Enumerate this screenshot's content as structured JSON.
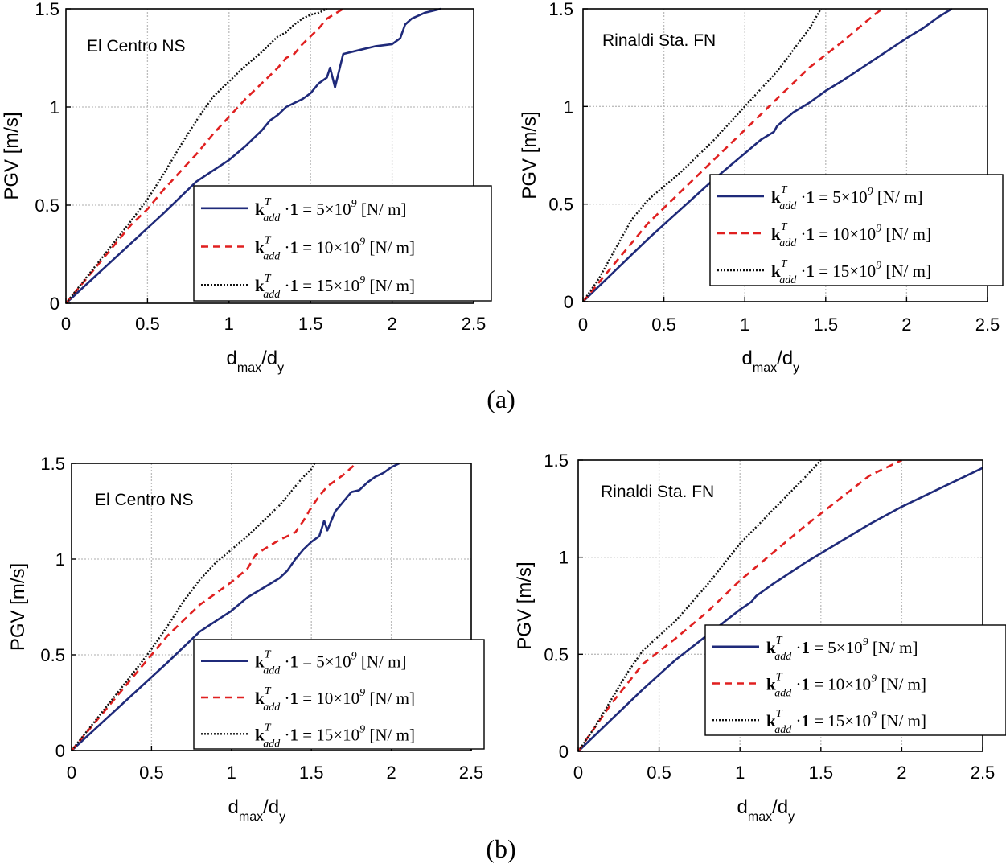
{
  "figure": {
    "captions": [
      "(a)",
      "(b)"
    ]
  },
  "legend_labels": [
    "= 5×10",
    "= 10×10",
    "= 15×10"
  ],
  "legend_common": {
    "k": "k",
    "sup": "T",
    "sub": "add",
    "dot": "·",
    "one": "1",
    "exp": "9",
    "unit": "[N/ m]"
  },
  "colors": {
    "series1": "#1f2a7a",
    "series2": "#e02020",
    "series3": "#111111",
    "grid": "#bdbdbd"
  },
  "chart_data": [
    {
      "id": "a-left",
      "type": "line",
      "title": "El Centro NS",
      "xlabel": "d_max/d_y",
      "xlabel_main": "d",
      "xlabel_sub1": "max",
      "xlabel_mid": "/d",
      "xlabel_sub2": "y",
      "ylabel": "PGV [m/s]",
      "xlim": [
        0,
        2.5
      ],
      "ylim": [
        0,
        1.5
      ],
      "xticks": [
        "0",
        "0.5",
        "1",
        "1.5",
        "2",
        "2.5"
      ],
      "yticks": [
        "0",
        "0.5",
        "1",
        "1.5"
      ],
      "legend": "bottom-right",
      "series": [
        {
          "name": "kTadd·1 = 5×10^9 [N/m]",
          "style": "solid",
          "x": [
            0,
            0.3,
            0.6,
            0.8,
            1.0,
            1.1,
            1.15,
            1.2,
            1.25,
            1.3,
            1.35,
            1.4,
            1.45,
            1.5,
            1.55,
            1.6,
            1.62,
            1.65,
            1.7,
            1.8,
            1.9,
            2.0,
            2.05,
            2.08,
            2.12,
            2.2,
            2.3
          ],
          "y": [
            0,
            0.23,
            0.46,
            0.62,
            0.73,
            0.8,
            0.84,
            0.88,
            0.93,
            0.96,
            1.0,
            1.02,
            1.04,
            1.07,
            1.12,
            1.15,
            1.2,
            1.1,
            1.27,
            1.29,
            1.31,
            1.32,
            1.35,
            1.42,
            1.45,
            1.48,
            1.5
          ]
        },
        {
          "name": "kTadd·1 = 10×10^9 [N/m]",
          "style": "dashed",
          "x": [
            0,
            0.2,
            0.4,
            0.5,
            0.6,
            0.8,
            0.9,
            1.0,
            1.1,
            1.2,
            1.3,
            1.35,
            1.4,
            1.45,
            1.5,
            1.55,
            1.6,
            1.7
          ],
          "y": [
            0,
            0.2,
            0.4,
            0.48,
            0.58,
            0.76,
            0.86,
            0.95,
            1.04,
            1.12,
            1.2,
            1.25,
            1.27,
            1.32,
            1.36,
            1.4,
            1.45,
            1.5
          ]
        },
        {
          "name": "kTadd·1 = 15×10^9 [N/m]",
          "style": "dotted",
          "x": [
            0,
            0.2,
            0.4,
            0.5,
            0.6,
            0.7,
            0.8,
            0.9,
            1.0,
            1.1,
            1.2,
            1.25,
            1.3,
            1.35,
            1.4,
            1.45,
            1.5,
            1.55,
            1.6
          ],
          "y": [
            0,
            0.21,
            0.42,
            0.53,
            0.66,
            0.8,
            0.93,
            1.05,
            1.13,
            1.21,
            1.28,
            1.32,
            1.36,
            1.38,
            1.42,
            1.45,
            1.47,
            1.48,
            1.5
          ]
        }
      ]
    },
    {
      "id": "a-right",
      "type": "line",
      "title": "Rinaldi Sta. FN",
      "xlabel": "d_max/d_y",
      "xlabel_main": "d",
      "xlabel_sub1": "max",
      "xlabel_mid": "/d",
      "xlabel_sub2": "y",
      "ylabel": "PGV [m/s]",
      "xlim": [
        0,
        2.5
      ],
      "ylim": [
        0,
        1.5
      ],
      "xticks": [
        "0",
        "0.5",
        "1",
        "1.5",
        "2",
        "2.5"
      ],
      "yticks": [
        "0",
        "0.5",
        "1",
        "1.5"
      ],
      "legend": "bottom-right",
      "series": [
        {
          "name": "kTadd·1 = 5×10^9 [N/m]",
          "style": "solid",
          "x": [
            0,
            0.2,
            0.4,
            0.6,
            0.8,
            1.0,
            1.1,
            1.18,
            1.2,
            1.3,
            1.4,
            1.5,
            1.6,
            1.8,
            2.0,
            2.1,
            2.2,
            2.28
          ],
          "y": [
            0,
            0.16,
            0.32,
            0.47,
            0.62,
            0.76,
            0.83,
            0.87,
            0.9,
            0.97,
            1.02,
            1.08,
            1.13,
            1.24,
            1.35,
            1.4,
            1.46,
            1.5
          ]
        },
        {
          "name": "kTadd·1 = 10×10^9 [N/m]",
          "style": "dashed",
          "x": [
            0,
            0.2,
            0.4,
            0.6,
            0.8,
            1.0,
            1.2,
            1.4,
            1.6,
            1.8,
            1.85
          ],
          "y": [
            0,
            0.2,
            0.4,
            0.56,
            0.72,
            0.88,
            1.04,
            1.2,
            1.33,
            1.47,
            1.5
          ]
        },
        {
          "name": "kTadd·1 = 15×10^9 [N/m]",
          "style": "dotted",
          "x": [
            0,
            0.1,
            0.2,
            0.3,
            0.4,
            0.6,
            0.8,
            1.0,
            1.2,
            1.4,
            1.47
          ],
          "y": [
            0,
            0.12,
            0.27,
            0.42,
            0.52,
            0.66,
            0.82,
            1.0,
            1.18,
            1.4,
            1.5
          ]
        }
      ]
    },
    {
      "id": "b-left",
      "type": "line",
      "title": "El Centro NS",
      "xlabel": "d_max/d_y",
      "xlabel_main": "d",
      "xlabel_sub1": "max",
      "xlabel_mid": "/d",
      "xlabel_sub2": "y",
      "ylabel": "PGV [m/s]",
      "xlim": [
        0,
        2.5
      ],
      "ylim": [
        0,
        1.5
      ],
      "xticks": [
        "0",
        "0.5",
        "1",
        "1.5",
        "2",
        "2.5"
      ],
      "yticks": [
        "0",
        "0.5",
        "1",
        "1.5"
      ],
      "legend": "bottom-right",
      "series": [
        {
          "name": "kTadd·1 = 5×10^9 [N/m]",
          "style": "solid",
          "x": [
            0,
            0.3,
            0.6,
            0.8,
            1.0,
            1.1,
            1.2,
            1.3,
            1.35,
            1.4,
            1.45,
            1.5,
            1.55,
            1.58,
            1.6,
            1.65,
            1.7,
            1.75,
            1.8,
            1.85,
            1.9,
            1.95,
            2.0,
            2.05
          ],
          "y": [
            0,
            0.23,
            0.46,
            0.62,
            0.73,
            0.8,
            0.85,
            0.9,
            0.94,
            1.0,
            1.05,
            1.09,
            1.12,
            1.2,
            1.15,
            1.25,
            1.3,
            1.35,
            1.36,
            1.4,
            1.43,
            1.45,
            1.48,
            1.5
          ]
        },
        {
          "name": "kTadd·1 = 10×10^9 [N/m]",
          "style": "dashed",
          "x": [
            0,
            0.2,
            0.4,
            0.5,
            0.6,
            0.8,
            1.0,
            1.1,
            1.15,
            1.2,
            1.3,
            1.4,
            1.45,
            1.5,
            1.55,
            1.6,
            1.7,
            1.78
          ],
          "y": [
            0,
            0.2,
            0.4,
            0.5,
            0.6,
            0.76,
            0.88,
            0.95,
            1.02,
            1.05,
            1.1,
            1.14,
            1.2,
            1.27,
            1.33,
            1.38,
            1.44,
            1.5
          ]
        },
        {
          "name": "kTadd·1 = 15×10^9 [N/m]",
          "style": "dotted",
          "x": [
            0,
            0.2,
            0.4,
            0.5,
            0.6,
            0.7,
            0.8,
            0.9,
            1.0,
            1.1,
            1.2,
            1.3,
            1.35,
            1.4,
            1.45,
            1.5,
            1.52
          ],
          "y": [
            0,
            0.21,
            0.42,
            0.53,
            0.65,
            0.78,
            0.89,
            0.98,
            1.05,
            1.12,
            1.2,
            1.28,
            1.33,
            1.38,
            1.43,
            1.47,
            1.5
          ]
        }
      ]
    },
    {
      "id": "b-right",
      "type": "line",
      "title": "Rinaldi Sta. FN",
      "xlabel": "d_max/d_y",
      "xlabel_main": "d",
      "xlabel_sub1": "max",
      "xlabel_mid": "/d",
      "xlabel_sub2": "y",
      "ylabel": "PGV [m/s]",
      "xlim": [
        0,
        2.5
      ],
      "ylim": [
        0,
        1.5
      ],
      "xticks": [
        "0",
        "0.5",
        "1",
        "1.5",
        "2",
        "2.5"
      ],
      "yticks": [
        "0",
        "0.5",
        "1",
        "1.5"
      ],
      "legend": "bottom-right",
      "series": [
        {
          "name": "kTadd·1 = 5×10^9 [N/m]",
          "style": "solid",
          "x": [
            0,
            0.2,
            0.4,
            0.6,
            0.8,
            1.0,
            1.07,
            1.1,
            1.2,
            1.4,
            1.6,
            1.8,
            2.0,
            2.2,
            2.4,
            2.5
          ],
          "y": [
            0,
            0.16,
            0.32,
            0.47,
            0.6,
            0.73,
            0.77,
            0.8,
            0.86,
            0.97,
            1.07,
            1.17,
            1.26,
            1.34,
            1.42,
            1.46
          ]
        },
        {
          "name": "kTadd·1 = 10×10^9 [N/m]",
          "style": "dashed",
          "x": [
            0,
            0.2,
            0.4,
            0.6,
            0.8,
            1.0,
            1.2,
            1.4,
            1.6,
            1.8,
            2.0
          ],
          "y": [
            0,
            0.24,
            0.45,
            0.58,
            0.72,
            0.88,
            1.02,
            1.16,
            1.29,
            1.42,
            1.5
          ]
        },
        {
          "name": "kTadd·1 = 15×10^9 [N/m]",
          "style": "dotted",
          "x": [
            0,
            0.1,
            0.2,
            0.3,
            0.4,
            0.6,
            0.8,
            1.0,
            1.2,
            1.4,
            1.5
          ],
          "y": [
            0,
            0.12,
            0.26,
            0.4,
            0.52,
            0.67,
            0.86,
            1.07,
            1.24,
            1.41,
            1.5
          ]
        }
      ]
    }
  ]
}
